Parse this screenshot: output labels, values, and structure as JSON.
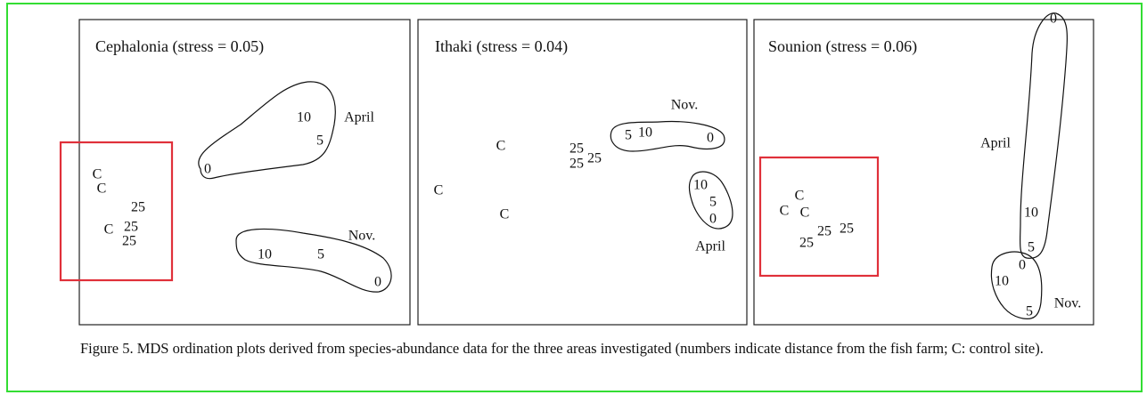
{
  "panels": [
    {
      "title": "Cephalonia (stress = 0.05)",
      "labels": [
        "C",
        "C",
        "25",
        "C",
        "25",
        "25",
        "10",
        "April",
        "5",
        "0",
        "Nov.",
        "10",
        "5",
        "0"
      ]
    },
    {
      "title": "Ithaki (stress = 0.04)",
      "labels": [
        "C",
        "25",
        "25",
        "25",
        "C",
        "C",
        "Nov.",
        "5",
        "10",
        "0",
        "10",
        "5",
        "0",
        "April"
      ]
    },
    {
      "title": "Sounion (stress = 0.06)",
      "labels": [
        "0",
        "April",
        "10",
        "5",
        "C",
        "C",
        "C",
        "25",
        "25",
        "25",
        "Nov.",
        "0",
        "10",
        "5"
      ]
    }
  ],
  "caption": "Figure 5. MDS ordination plots derived from species-abundance data for the three areas investigated (numbers indicate distance from the fish farm; C: control site)."
}
